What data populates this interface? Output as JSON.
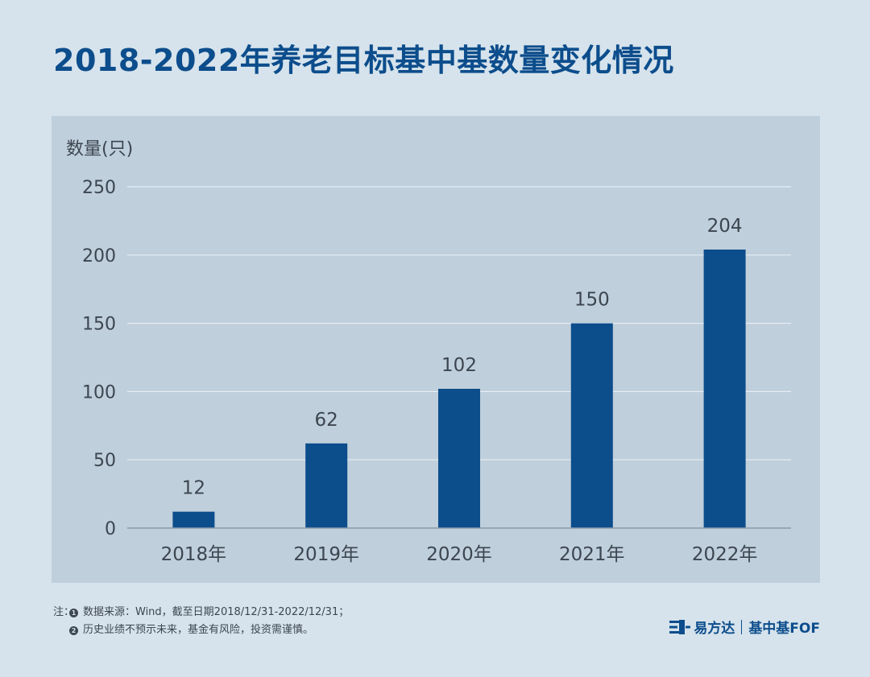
{
  "page": {
    "title": "2018-2022年养老目标基中基数量变化情况"
  },
  "chart_data": {
    "type": "bar",
    "title": "2018-2022年养老目标基中基数量变化情况",
    "ylabel": "数量(只)",
    "xlabel": "",
    "categories": [
      "2018年",
      "2019年",
      "2020年",
      "2021年",
      "2022年"
    ],
    "values": [
      12,
      62,
      102,
      150,
      204
    ],
    "data_labels": [
      "12",
      "62",
      "102",
      "150",
      "204"
    ],
    "yticks": [
      0,
      50,
      100,
      150,
      200,
      250
    ],
    "ytick_labels": [
      "0",
      "50",
      "100",
      "150",
      "200",
      "250"
    ],
    "ylim": [
      0,
      250
    ],
    "grid": true,
    "colors": {
      "bar": "#0c4d8c",
      "grid": "#e6eef4",
      "axis": "#8a9aa7",
      "text": "#3c4650",
      "label": "#3c4650"
    }
  },
  "notes": {
    "prefix": "注：",
    "items": [
      {
        "num": "1",
        "text": "数据来源：Wind，截至日期2018/12/31-2022/12/31；"
      },
      {
        "num": "2",
        "text": "历史业绩不预示未来，基金有风险，投资需谨慎。"
      }
    ]
  },
  "brand": {
    "company": "易方达",
    "product": "基中基FOF",
    "icon": "efund-logo-icon"
  }
}
